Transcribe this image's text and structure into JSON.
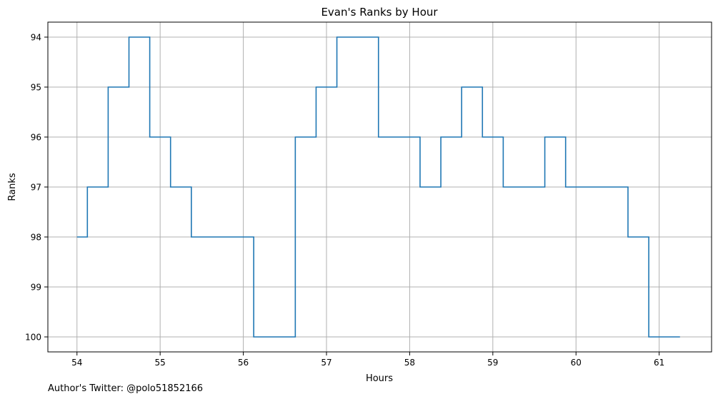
{
  "footer": {
    "credit": "Author's Twitter: @polo51852166"
  },
  "colors": {
    "line": "#1f77b4",
    "grid": "#b0b0b0",
    "axis": "#000000"
  },
  "chart_data": {
    "type": "line",
    "drawstyle": "steps-post",
    "title": "Evan's Ranks by Hour",
    "xlabel": "Hours",
    "ylabel": "Ranks",
    "xlim": [
      53.65,
      61.63
    ],
    "ylim": [
      100.3,
      93.7
    ],
    "y_inverted": true,
    "grid": true,
    "legend": "none",
    "xticks": [
      54,
      55,
      56,
      57,
      58,
      59,
      60,
      61
    ],
    "xtick_labels": [
      "54",
      "55",
      "56",
      "57",
      "58",
      "59",
      "60",
      "61"
    ],
    "yticks": [
      94,
      95,
      96,
      97,
      98,
      99,
      100
    ],
    "ytick_labels": [
      "94",
      "95",
      "96",
      "97",
      "98",
      "99",
      "100"
    ],
    "series": [
      {
        "x": [
          54.0,
          54.125,
          54.375,
          54.625,
          54.875,
          55.125,
          55.375,
          55.625,
          55.875,
          56.125,
          56.375,
          56.625,
          56.875,
          57.125,
          57.375,
          57.625,
          57.875,
          58.125,
          58.375,
          58.625,
          58.875,
          59.125,
          59.375,
          59.625,
          59.875,
          60.125,
          60.375,
          60.625,
          60.875,
          61.125,
          61.25
        ],
        "y": [
          98,
          97,
          95,
          94,
          96,
          97,
          98,
          98,
          98,
          100,
          100,
          96,
          95,
          94,
          94,
          96,
          96,
          97,
          96,
          95,
          96,
          97,
          97,
          96,
          97,
          97,
          97,
          98,
          100,
          100,
          100
        ]
      }
    ]
  }
}
